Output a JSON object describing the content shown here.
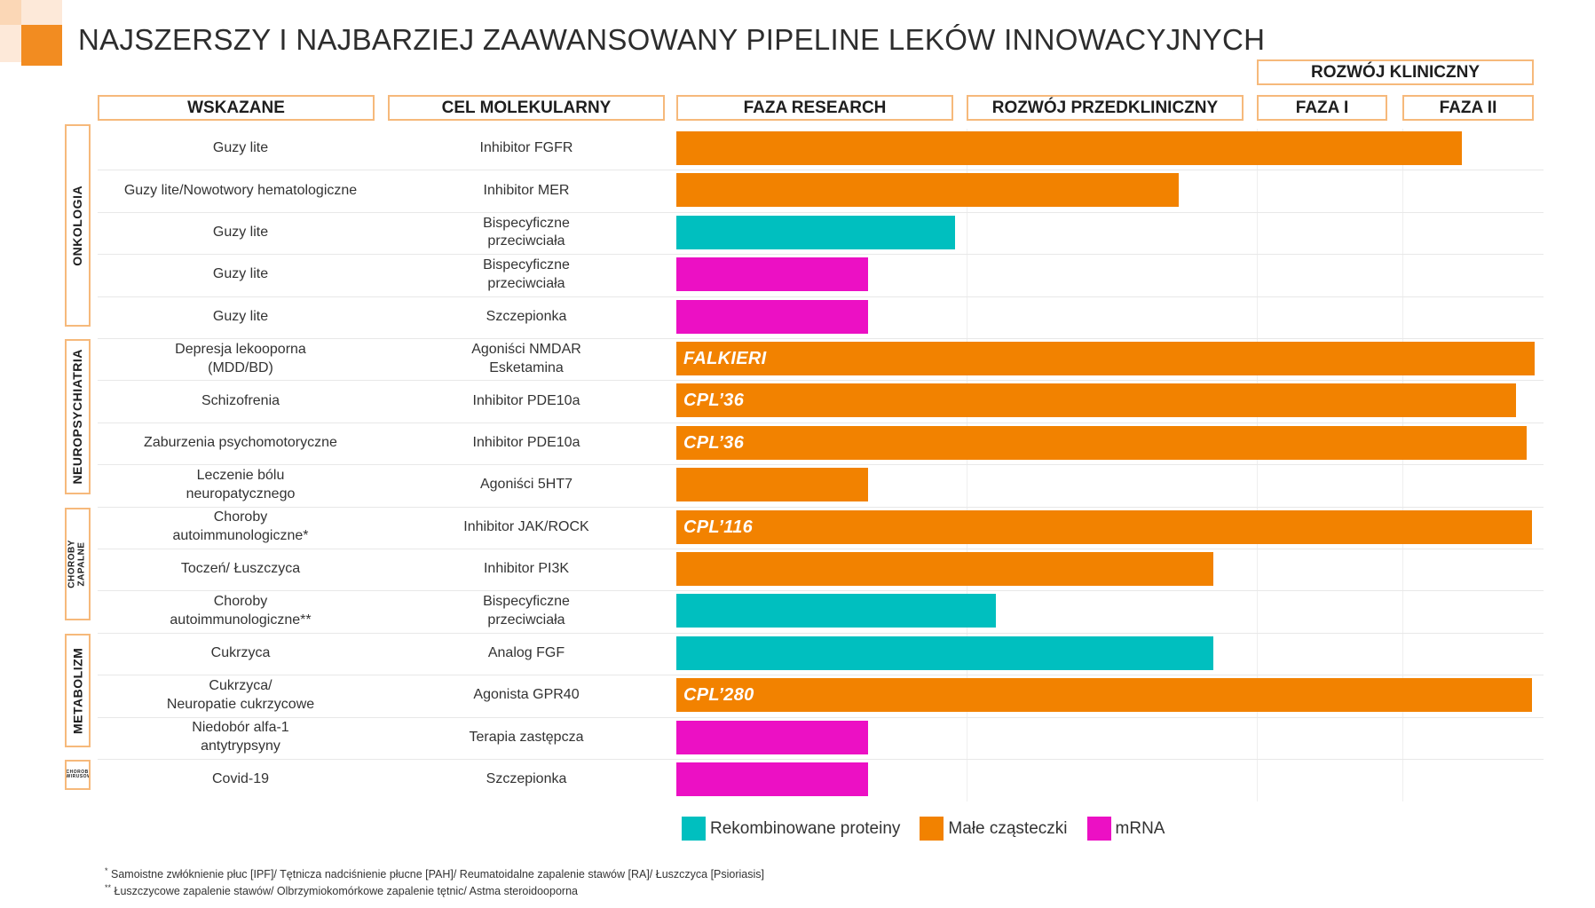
{
  "title": "NAJSZERSZY I NAJBARZIEJ ZAAWANSOWANY PIPELINE LEKÓW INNOWACYJNYCH",
  "headers": {
    "wskazane": "WSKAZANE",
    "cel": "CEL MOLEKULARNY",
    "research": "FAZA RESEARCH",
    "preclinical": "ROZWÓJ PRZEDKLINICZNY",
    "clinical": "ROZWÓJ KLINICZNY",
    "phase1": "FAZA I",
    "phase2": "FAZA II"
  },
  "categories": [
    {
      "label": "ONKOLOGIA"
    },
    {
      "label": "NEUROPSYCHIATRIA"
    },
    {
      "label": "CHOROBY ZAPALNE"
    },
    {
      "label": "METABOLIZM"
    },
    {
      "label": "CHOROBY WIRUSOWE"
    }
  ],
  "colors": {
    "Rekombinowane proteiny": "#00bfbf",
    "Małe cząsteczki": "#f28200",
    "mRNA": "#ec10c4",
    "accent": "#f28c21",
    "header_border": "#f6b97b"
  },
  "chart_data": {
    "type": "bar",
    "orientation": "horizontal",
    "title": "NAJSZERSZY I NAJBARZIEJ ZAAWANSOWANY PIPELINE LEKÓW INNOWACYJNYCH",
    "x_stages": [
      "FAZA RESEARCH",
      "ROZWÓJ PRZEDKLINICZNY",
      "FAZA I",
      "FAZA II"
    ],
    "xlim": [
      0,
      4
    ],
    "legend_position": "bottom",
    "legend": [
      {
        "name": "Rekombinowane proteiny",
        "type": "protein"
      },
      {
        "name": "Małe cząsteczki",
        "type": "small"
      },
      {
        "name": "mRNA",
        "type": "mrna"
      }
    ],
    "rows": [
      {
        "indication": "Guzy lite",
        "target": "Inhibitor FGFR",
        "type": "small",
        "progress": 3.45,
        "label": ""
      },
      {
        "indication": "Guzy lite/Nowotwory hematologiczne",
        "target": "Inhibitor MER",
        "type": "small",
        "progress": 1.73,
        "label": ""
      },
      {
        "indication": "Guzy lite",
        "target": "Bispecyficzne\nprzeciwciała",
        "type": "protein",
        "progress": 0.96,
        "label": ""
      },
      {
        "indication": "Guzy lite",
        "target": "Bispecyficzne\nprzeciwciała",
        "type": "mrna",
        "progress": 0.66,
        "label": ""
      },
      {
        "indication": "Guzy lite",
        "target": "Szczepionka",
        "type": "mrna",
        "progress": 0.66,
        "label": ""
      },
      {
        "indication": "Depresja lekooporna\n(MDD/BD)",
        "target": "Agoniści NMDAR\nEsketamina",
        "type": "small",
        "progress": 4.0,
        "label": "FALKIERI"
      },
      {
        "indication": "Schizofrenia",
        "target": "Inhibitor PDE10a",
        "type": "small",
        "progress": 3.86,
        "label": "CPL’36"
      },
      {
        "indication": "Zaburzenia psychomotoryczne",
        "target": "Inhibitor PDE10a",
        "type": "small",
        "progress": 3.94,
        "label": "CPL’36"
      },
      {
        "indication": "Leczenie bólu\nneuropatycznego",
        "target": "Agoniści 5HT7",
        "type": "small",
        "progress": 0.66,
        "label": ""
      },
      {
        "indication": "Choroby\nautoimmunologiczne*",
        "target": "Inhibitor JAK/ROCK",
        "type": "small",
        "progress": 3.98,
        "label": "CPL’116"
      },
      {
        "indication": "Toczeń/ Łuszczyca",
        "target": "Inhibitor PI3K",
        "type": "small",
        "progress": 1.85,
        "label": ""
      },
      {
        "indication": "Choroby\nautoimmunologiczne**",
        "target": "Bispecyficzne\nprzeciwciała",
        "type": "protein",
        "progress": 1.1,
        "label": ""
      },
      {
        "indication": "Cukrzyca",
        "target": "Analog FGF",
        "type": "protein",
        "progress": 1.85,
        "label": ""
      },
      {
        "indication": "Cukrzyca/\nNeuropatie cukrzycowe",
        "target": "Agonista GPR40",
        "type": "small",
        "progress": 3.98,
        "label": "CPL’280"
      },
      {
        "indication": "Niedobór alfa-1\nantytrypsyny",
        "target": "Terapia zastępcza",
        "type": "mrna",
        "progress": 0.66,
        "label": ""
      },
      {
        "indication": "Covid-19",
        "target": "Szczepionka",
        "type": "mrna",
        "progress": 0.66,
        "label": ""
      }
    ]
  },
  "footnotes": [
    {
      "mark": "*",
      "text": "Samoistne zwłóknienie płuc [IPF]/ Tętnicza nadciśnienie płucne [PAH]/ Reumatoidalne zapalenie stawów [RA]/ Łuszczyca [Psioriasis]"
    },
    {
      "mark": "**",
      "text": "Łuszczycowe zapalenie stawów/ Olbrzymiokomórkowe zapalenie tętnic/ Astma steroidooporna"
    }
  ]
}
